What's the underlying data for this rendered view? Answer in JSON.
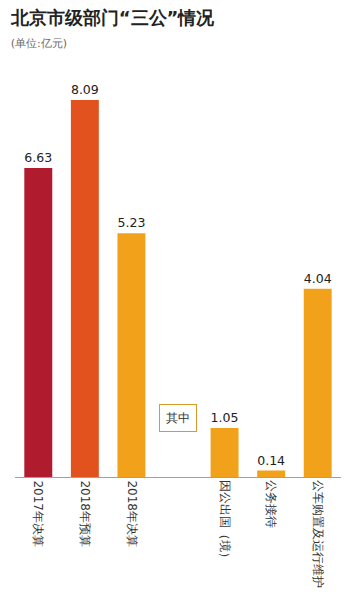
{
  "chart_data": {
    "type": "bar",
    "title": "北京市级部门“三公”情况",
    "subtitle": "(单位:亿元)",
    "categories": [
      "2017年决算",
      "2018年预算",
      "2018年决算",
      null,
      "因公出国（境）",
      "公务接待",
      "公车购置及运行维护"
    ],
    "values": [
      6.63,
      8.09,
      5.23,
      null,
      1.05,
      0.14,
      4.04
    ],
    "colors": [
      "#b01c2e",
      "#e2521f",
      "#f2a21a",
      null,
      "#f2a21a",
      "#f2a21a",
      "#f2a21a"
    ],
    "ylim": [
      0,
      8.09
    ],
    "data_labels": true,
    "tick_labels": "x",
    "annotations": [
      {
        "text": "其中"
      }
    ]
  }
}
